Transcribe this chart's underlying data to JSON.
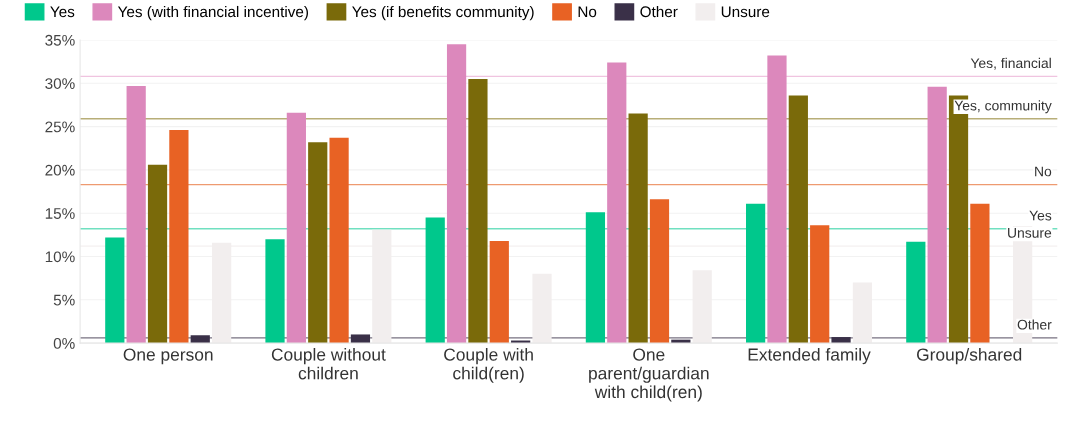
{
  "chart_data": {
    "type": "bar",
    "categories": [
      "One person",
      "Couple without\nchildren",
      "Couple with\nchild(ren)",
      "One\nparent/guardian\nwith child(ren)",
      "Extended family",
      "Group/shared"
    ],
    "series": [
      {
        "name": "Yes",
        "color": "#00c88c",
        "values": [
          12.2,
          12.0,
          14.5,
          15.1,
          16.1,
          11.7
        ]
      },
      {
        "name": "Yes (with financial incentive)",
        "color": "#dc88bc",
        "values": [
          29.7,
          26.6,
          34.5,
          32.4,
          33.2,
          29.6
        ]
      },
      {
        "name": "Yes (if benefits community)",
        "color": "#7a6a0a",
        "values": [
          20.6,
          23.2,
          30.5,
          26.5,
          28.6,
          28.6
        ]
      },
      {
        "name": "No",
        "color": "#e86224",
        "values": [
          24.6,
          23.7,
          11.8,
          16.6,
          13.6,
          16.1
        ]
      },
      {
        "name": "Other",
        "color": "#3a3048",
        "values": [
          0.9,
          1.0,
          0.3,
          0.4,
          0.7,
          0
        ]
      },
      {
        "name": "Unsure",
        "color": "#f2eeee",
        "values": [
          11.6,
          13.1,
          8.0,
          8.4,
          7.0,
          13.5
        ]
      }
    ],
    "ylim": [
      0,
      35
    ],
    "yticks": [
      {
        "value": 0,
        "label": "0%"
      },
      {
        "value": 5,
        "label": "5%"
      },
      {
        "value": 10,
        "label": "10%"
      },
      {
        "value": 15,
        "label": "15%"
      },
      {
        "value": 20,
        "label": "20%"
      },
      {
        "value": 25,
        "label": "25%"
      },
      {
        "value": 30,
        "label": "30%"
      },
      {
        "value": 35,
        "label": "35%"
      }
    ],
    "ref_lines": [
      {
        "axis": "y",
        "value": 30.8,
        "label": "Yes, financial",
        "color": "#f0c4e0"
      },
      {
        "axis": "y",
        "value": 25.9,
        "label": "Yes, community",
        "color": "#b8ae78"
      },
      {
        "axis": "y",
        "value": 18.3,
        "label": "No",
        "color": "#ee9a70"
      },
      {
        "axis": "y",
        "value": 13.2,
        "label": "Yes",
        "color": "#70e0c0"
      },
      {
        "axis": "y",
        "value": 11.2,
        "label": "Unsure",
        "color": "#f4f0f0"
      },
      {
        "axis": "y",
        "value": 0.6,
        "label": "Other",
        "color": "#777080"
      }
    ],
    "grid": "y",
    "legend": "top left"
  }
}
